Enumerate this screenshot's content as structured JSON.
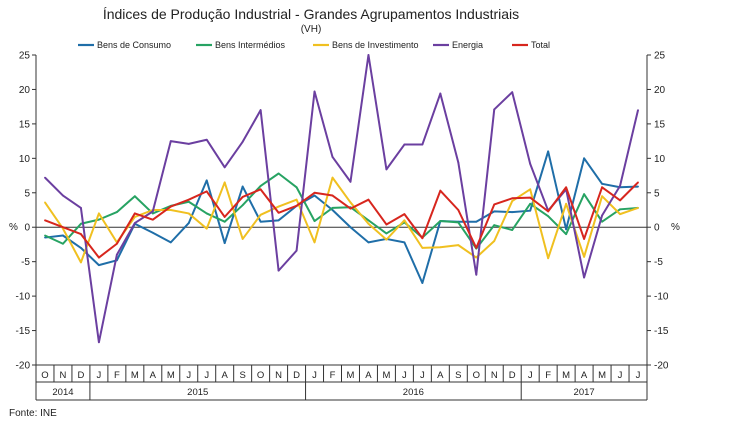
{
  "chart_data": {
    "type": "line",
    "title": "Índices de Produção Industrial - Grandes Agrupamentos Industriais",
    "subtitle": "(VH)",
    "ylabel_left": "%",
    "ylabel_right": "%",
    "ylim": [
      -20,
      25
    ],
    "yticks": [
      -20,
      -15,
      -10,
      -5,
      0,
      5,
      10,
      15,
      20,
      25
    ],
    "grid": false,
    "legend_position": "top",
    "source": "Fonte: INE",
    "months": [
      "O",
      "N",
      "D",
      "J",
      "F",
      "M",
      "A",
      "M",
      "J",
      "J",
      "A",
      "S",
      "O",
      "N",
      "D",
      "J",
      "F",
      "M",
      "A",
      "M",
      "J",
      "J",
      "A",
      "S",
      "O",
      "N",
      "D",
      "J",
      "F",
      "M",
      "A",
      "M",
      "J",
      "J"
    ],
    "years": [
      {
        "label": "2014",
        "start": 0,
        "end": 3
      },
      {
        "label": "2015",
        "start": 3,
        "end": 15
      },
      {
        "label": "2016",
        "start": 15,
        "end": 27
      },
      {
        "label": "2017",
        "start": 27,
        "end": 34
      }
    ],
    "series": [
      {
        "name": "Bens de Consumo",
        "color": "#1f6ea8",
        "values": [
          -1.5,
          -1.2,
          -3.0,
          -5.5,
          -4.8,
          0.5,
          -0.8,
          -2.2,
          0.6,
          6.8,
          -2.3,
          5.9,
          0.8,
          1.0,
          3.1,
          4.6,
          2.5,
          0.0,
          -2.2,
          -1.7,
          -2.2,
          -8.1,
          0.9,
          0.8,
          0.8,
          2.3,
          2.2,
          2.4,
          11.0,
          -0.3,
          10.0,
          6.3,
          5.8,
          5.9
        ]
      },
      {
        "name": "Bens Intermédios",
        "color": "#27a363",
        "values": [
          -1.2,
          -2.4,
          0.5,
          1.1,
          2.2,
          4.5,
          2.0,
          3.1,
          3.7,
          2.0,
          0.8,
          3.2,
          6.0,
          7.8,
          5.8,
          0.9,
          2.8,
          2.9,
          1.0,
          -0.9,
          0.7,
          -1.5,
          0.9,
          0.7,
          -3.1,
          0.3,
          -0.4,
          3.4,
          1.6,
          -1.0,
          4.8,
          0.8,
          2.6,
          2.8
        ]
      },
      {
        "name": "Bens de Investimento",
        "color": "#f0c020",
        "values": [
          3.6,
          -0.2,
          -5.1,
          2.0,
          -2.2,
          1.5,
          2.5,
          2.5,
          2.0,
          -0.2,
          6.5,
          -1.7,
          1.8,
          3.0,
          4.0,
          -2.2,
          7.2,
          3.6,
          0.5,
          -1.8,
          1.0,
          -3.0,
          -2.9,
          -2.6,
          -4.4,
          -2.0,
          3.8,
          5.5,
          -4.5,
          3.4,
          -4.3,
          4.5,
          1.9,
          2.8
        ]
      },
      {
        "name": "Energia",
        "color": "#6b3fa0",
        "values": [
          7.2,
          4.6,
          2.8,
          -16.7,
          -4.0,
          0.6,
          2.3,
          12.5,
          12.1,
          12.7,
          8.7,
          12.4,
          17.0,
          -6.3,
          -3.4,
          19.7,
          10.2,
          6.6,
          25.0,
          8.4,
          12.0,
          12.0,
          19.4,
          9.4,
          -6.9,
          17.1,
          19.6,
          9.2,
          2.4,
          5.5,
          -7.3,
          1.7,
          6.0,
          17.0
        ]
      },
      {
        "name": "Total",
        "color": "#d7261e",
        "values": [
          1.0,
          0.0,
          -1.0,
          -4.4,
          -2.4,
          2.0,
          1.1,
          3.0,
          4.0,
          5.2,
          1.5,
          4.4,
          5.5,
          2.1,
          3.1,
          5.0,
          4.6,
          2.7,
          4.0,
          0.4,
          1.9,
          -1.6,
          5.3,
          2.5,
          -3.0,
          3.3,
          4.2,
          4.3,
          2.3,
          5.8,
          -1.7,
          5.8,
          3.9,
          6.5
        ]
      }
    ]
  }
}
